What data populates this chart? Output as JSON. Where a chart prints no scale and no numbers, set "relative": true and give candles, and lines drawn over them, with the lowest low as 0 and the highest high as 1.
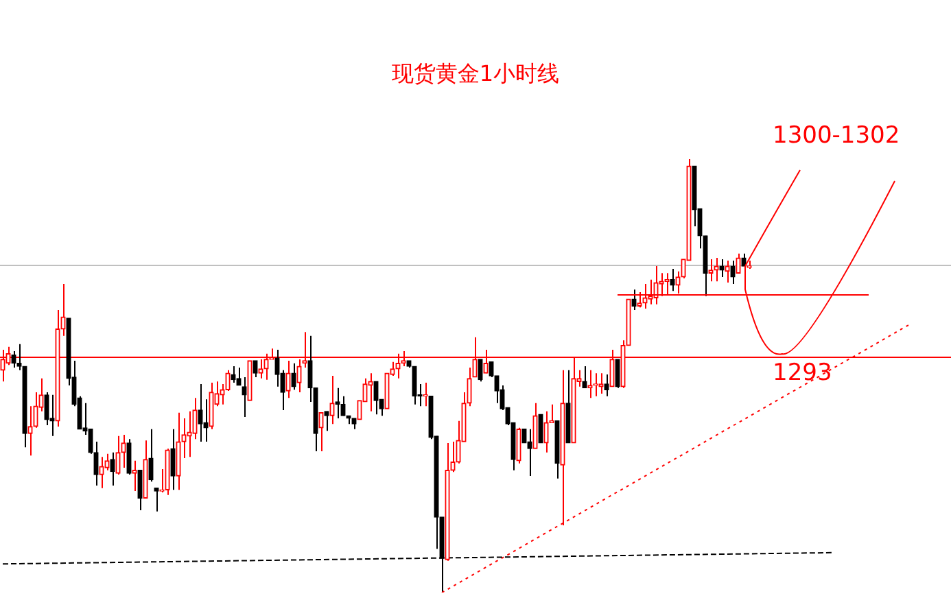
{
  "chart_data": {
    "type": "candlestick",
    "title": "现货黄金1小时线",
    "relative": true,
    "categories": [
      null,
      null,
      null,
      null,
      null,
      null,
      null,
      null,
      null,
      null,
      null,
      null,
      null,
      null,
      null,
      null,
      null,
      null,
      null,
      null,
      null,
      null,
      null,
      null,
      null,
      null,
      null,
      null,
      null,
      null,
      null,
      null,
      null,
      null,
      null,
      null,
      null,
      null,
      null,
      null,
      null,
      null,
      null,
      null,
      null,
      null,
      null,
      null,
      null,
      null,
      null,
      null,
      null,
      null,
      null,
      null,
      null,
      null,
      null,
      null,
      null,
      null,
      null,
      null,
      null,
      null,
      null,
      null,
      null,
      null,
      null,
      null,
      null,
      null,
      null,
      null,
      null,
      null,
      null,
      null,
      null,
      null,
      null,
      null,
      null,
      null,
      null,
      null,
      null,
      null,
      null,
      null,
      null,
      null,
      null,
      null,
      null,
      null,
      null,
      null,
      null,
      null,
      null,
      null,
      null,
      null,
      null,
      null,
      null,
      null,
      null,
      null,
      null,
      null,
      null,
      null,
      null,
      null,
      null,
      null,
      null,
      null,
      null,
      null,
      null,
      null,
      null,
      null,
      null,
      null,
      null,
      null,
      null,
      null,
      null,
      null,
      null,
      null,
      null,
      null,
      null,
      null,
      null,
      null,
      null,
      null,
      null,
      null,
      null,
      null,
      null,
      null,
      null,
      null,
      null,
      null,
      null,
      null,
      null,
      null,
      null,
      null,
      null,
      null,
      null,
      null
    ],
    "series": [
      {
        "type": "line",
        "color": "#000000",
        "line_style": "dashed",
        "values": [
          0.066,
          null,
          null,
          null,
          null,
          null,
          null,
          null,
          null,
          null,
          null,
          null,
          null,
          null,
          null,
          null,
          null,
          null,
          null,
          null,
          null,
          null,
          null,
          null,
          null,
          null,
          null,
          null,
          null,
          null,
          null,
          null,
          null,
          null,
          null,
          null,
          null,
          null,
          null,
          null,
          null,
          null,
          null,
          null,
          null,
          null,
          null,
          null,
          null,
          null,
          null,
          null,
          null,
          null,
          null,
          null,
          null,
          null,
          null,
          null,
          null,
          null,
          null,
          null,
          null,
          null,
          null,
          null,
          null,
          null,
          null,
          null,
          null,
          null,
          null,
          null,
          null,
          null,
          null,
          null,
          null,
          null,
          null,
          null,
          null,
          null,
          null,
          null,
          null,
          null,
          null,
          null,
          null,
          null,
          null,
          null,
          null,
          null,
          null,
          null,
          null,
          null,
          null,
          null,
          null,
          null,
          null,
          null,
          null,
          null,
          null,
          null,
          null,
          null,
          null,
          null,
          null,
          null,
          null,
          null,
          null,
          null,
          null,
          null,
          null,
          null,
          null,
          null,
          null,
          null,
          null,
          null,
          null,
          null,
          null,
          null,
          null,
          null,
          null,
          null,
          null,
          null,
          null,
          null,
          null,
          null,
          null,
          null,
          null,
          null,
          null,
          0.092,
          null,
          null,
          null,
          null,
          null,
          null,
          null,
          null,
          null,
          null,
          null,
          null,
          null,
          null
        ]
      },
      {
        "type": "line",
        "color": "#ff0000",
        "line_style": "dotted",
        "values": [
          null,
          null,
          null,
          null,
          null,
          null,
          null,
          null,
          null,
          null,
          null,
          null,
          null,
          null,
          null,
          null,
          null,
          null,
          null,
          null,
          null,
          null,
          null,
          null,
          null,
          null,
          null,
          null,
          null,
          null,
          null,
          null,
          null,
          null,
          null,
          null,
          null,
          null,
          null,
          null,
          null,
          null,
          null,
          null,
          null,
          null,
          null,
          null,
          null,
          null,
          null,
          null,
          null,
          null,
          null,
          null,
          null,
          null,
          null,
          null,
          null,
          null,
          null,
          null,
          null,
          null,
          null,
          null,
          null,
          null,
          null,
          null,
          null,
          null,
          null,
          null,
          null,
          null,
          null,
          null,
          0,
          null,
          null,
          null,
          null,
          null,
          null,
          null,
          null,
          null,
          null,
          null,
          null,
          null,
          null,
          null,
          null,
          null,
          null,
          null,
          null,
          null,
          null,
          null,
          null,
          null,
          null,
          null,
          null,
          null,
          null,
          null,
          null,
          null,
          null,
          null,
          null,
          null,
          null,
          null,
          null,
          null,
          null,
          null,
          null,
          null,
          null,
          null,
          null,
          null,
          null,
          null,
          null,
          null,
          null,
          null,
          null,
          null,
          null,
          null,
          null,
          null,
          null,
          null,
          null,
          null,
          null,
          null,
          null,
          null,
          null,
          null,
          null,
          null,
          null,
          null,
          null,
          null,
          null,
          null,
          null,
          null,
          null,
          null,
          null,
          0.617
        ]
      }
    ],
    "ohlc": [
      [
        0.513,
        0.56,
        0.487,
        0.538
      ],
      [
        0.529,
        0.567,
        0.525,
        0.551
      ],
      [
        0.548,
        0.557,
        0.519,
        0.529
      ],
      [
        0.529,
        0.573,
        0.513,
        0.522
      ],
      [
        0.522,
        0.522,
        0.335,
        0.367
      ],
      [
        0.367,
        0.43,
        0.316,
        0.383
      ],
      [
        0.383,
        0.462,
        0.38,
        0.43
      ],
      [
        0.427,
        0.494,
        0.418,
        0.456
      ],
      [
        0.456,
        0.462,
        0.386,
        0.399
      ],
      [
        0.402,
        0.456,
        0.361,
        0.396
      ],
      [
        0.396,
        0.652,
        0.383,
        0.608
      ],
      [
        0.608,
        0.712,
        0.592,
        0.636
      ],
      [
        0.633,
        0.633,
        0.478,
        0.494
      ],
      [
        0.497,
        0.535,
        0.43,
        0.434
      ],
      [
        0.449,
        0.453,
        0.377,
        0.377
      ],
      [
        0.38,
        0.437,
        0.364,
        0.373
      ],
      [
        0.377,
        0.377,
        0.32,
        0.323
      ],
      [
        0.323,
        0.348,
        0.247,
        0.272
      ],
      [
        0.272,
        0.313,
        0.241,
        0.291
      ],
      [
        0.288,
        0.32,
        0.282,
        0.304
      ],
      [
        0.307,
        0.323,
        0.247,
        0.279
      ],
      [
        0.275,
        0.361,
        0.272,
        0.323
      ],
      [
        0.323,
        0.364,
        0.288,
        0.345
      ],
      [
        0.345,
        0.354,
        0.272,
        0.275
      ],
      [
        0.275,
        0.304,
        0.234,
        0.282
      ],
      [
        0.282,
        0.282,
        0.19,
        0.218
      ],
      [
        0.218,
        0.351,
        0.218,
        0.307
      ],
      [
        0.31,
        0.377,
        0.256,
        0.26
      ],
      [
        0.241,
        0.241,
        0.187,
        0.234
      ],
      [
        0.234,
        0.285,
        0.231,
        0.237
      ],
      [
        0.237,
        0.332,
        0.225,
        0.329
      ],
      [
        0.332,
        0.377,
        0.237,
        0.269
      ],
      [
        0.269,
        0.415,
        0.237,
        0.348
      ],
      [
        0.348,
        0.402,
        0.31,
        0.364
      ],
      [
        0.361,
        0.418,
        0.313,
        0.37
      ],
      [
        0.367,
        0.449,
        0.354,
        0.421
      ],
      [
        0.421,
        0.481,
        0.348,
        0.389
      ],
      [
        0.392,
        0.446,
        0.348,
        0.38
      ],
      [
        0.383,
        0.484,
        0.377,
        0.462
      ],
      [
        0.434,
        0.487,
        0.43,
        0.459
      ],
      [
        0.456,
        0.481,
        0.434,
        0.468
      ],
      [
        0.468,
        0.513,
        0.465,
        0.506
      ],
      [
        0.503,
        0.522,
        0.484,
        0.491
      ],
      [
        0.494,
        0.519,
        0.478,
        0.478
      ],
      [
        0.475,
        0.497,
        0.405,
        0.456
      ],
      [
        0.443,
        0.535,
        0.443,
        0.535
      ],
      [
        0.535,
        0.535,
        0.497,
        0.506
      ],
      [
        0.506,
        0.538,
        0.494,
        0.516
      ],
      [
        0.516,
        0.551,
        0.491,
        0.538
      ],
      [
        0.538,
        0.563,
        0.538,
        0.541
      ],
      [
        0.541,
        0.56,
        0.475,
        0.503
      ],
      [
        0.506,
        0.513,
        0.421,
        0.462
      ],
      [
        0.465,
        0.535,
        0.449,
        0.506
      ],
      [
        0.506,
        0.529,
        0.468,
        0.475
      ],
      [
        0.484,
        0.538,
        0.462,
        0.522
      ],
      [
        0.529,
        0.601,
        0.519,
        0.535
      ],
      [
        0.535,
        0.592,
        0.44,
        0.472
      ],
      [
        0.472,
        0.472,
        0.326,
        0.367
      ],
      [
        0.38,
        0.415,
        0.326,
        0.415
      ],
      [
        0.418,
        0.418,
        0.373,
        0.408
      ],
      [
        0.408,
        0.5,
        0.389,
        0.437
      ],
      [
        0.44,
        0.472,
        0.402,
        0.434
      ],
      [
        0.434,
        0.453,
        0.408,
        0.408
      ],
      [
        0.408,
        0.408,
        0.389,
        0.402
      ],
      [
        0.402,
        0.402,
        0.377,
        0.389
      ],
      [
        0.399,
        0.443,
        0.399,
        0.443
      ],
      [
        0.44,
        0.494,
        0.44,
        0.481
      ],
      [
        0.478,
        0.506,
        0.418,
        0.487
      ],
      [
        0.487,
        0.487,
        0.411,
        0.443
      ],
      [
        0.446,
        0.446,
        0.408,
        0.424
      ],
      [
        0.424,
        0.506,
        0.424,
        0.506
      ],
      [
        0.503,
        0.532,
        0.5,
        0.516
      ],
      [
        0.516,
        0.551,
        0.494,
        0.529
      ],
      [
        0.529,
        0.557,
        0.522,
        0.535
      ],
      [
        0.535,
        0.535,
        0.519,
        0.522
      ],
      [
        0.522,
        0.522,
        0.434,
        0.453
      ],
      [
        0.456,
        0.481,
        0.43,
        0.453
      ],
      [
        0.453,
        0.484,
        0.43,
        0.456
      ],
      [
        0.453,
        0.453,
        0.354,
        0.358
      ],
      [
        0.361,
        0.361,
        0.101,
        0.174
      ],
      [
        0.174,
        0.174,
        0,
        0.079
      ],
      [
        0.076,
        0.345,
        0.073,
        0.282
      ],
      [
        0.282,
        0.348,
        0.278,
        0.301
      ],
      [
        0.301,
        0.396,
        0.298,
        0.351
      ],
      [
        0.348,
        0.462,
        0.348,
        0.437
      ],
      [
        0.437,
        0.519,
        0.43,
        0.494
      ],
      [
        0.497,
        0.589,
        0.497,
        0.538
      ],
      [
        0.538,
        0.538,
        0.487,
        0.491
      ],
      [
        0.506,
        0.56,
        0.506,
        0.529
      ],
      [
        0.532,
        0.532,
        0.497,
        0.5
      ],
      [
        0.5,
        0.5,
        0.437,
        0.465
      ],
      [
        0.468,
        0.478,
        0.421,
        0.424
      ],
      [
        0.427,
        0.427,
        0.386,
        0.389
      ],
      [
        0.392,
        0.392,
        0.282,
        0.307
      ],
      [
        0.304,
        0.38,
        0.298,
        0.377
      ],
      [
        0.377,
        0.377,
        0.345,
        0.345
      ],
      [
        0.348,
        0.377,
        0.269,
        0.332
      ],
      [
        0.332,
        0.437,
        0.332,
        0.408
      ],
      [
        0.411,
        0.411,
        0.345,
        0.345
      ],
      [
        0.345,
        0.418,
        0.323,
        0.392
      ],
      [
        0.392,
        0.434,
        0.392,
        0.396
      ],
      [
        0.396,
        0.396,
        0.263,
        0.298
      ],
      [
        0.294,
        0.513,
        0.155,
        0.437
      ],
      [
        0.437,
        0.513,
        0.345,
        0.345
      ],
      [
        0.345,
        0.544,
        0.345,
        0.494
      ],
      [
        0.487,
        0.513,
        0.475,
        0.494
      ],
      [
        0.487,
        0.522,
        0.472,
        0.472
      ],
      [
        0.472,
        0.513,
        0.449,
        0.478
      ],
      [
        0.478,
        0.506,
        0.453,
        0.481
      ],
      [
        0.475,
        0.506,
        0.459,
        0.481
      ],
      [
        0.481,
        0.503,
        0.453,
        0.468
      ],
      [
        0.475,
        0.56,
        0.475,
        0.538
      ],
      [
        0.538,
        0.538,
        0.472,
        0.475
      ],
      [
        0.475,
        0.582,
        0.472,
        0.57
      ],
      [
        0.57,
        0.677,
        0.57,
        0.677
      ],
      [
        0.677,
        0.699,
        0.652,
        0.661
      ],
      [
        0.661,
        0.693,
        0.658,
        0.668
      ],
      [
        0.668,
        0.712,
        0.655,
        0.68
      ],
      [
        0.677,
        0.722,
        0.665,
        0.684
      ],
      [
        0.68,
        0.753,
        0.665,
        0.715
      ],
      [
        0.712,
        0.737,
        0.684,
        0.718
      ],
      [
        0.718,
        0.737,
        0.687,
        0.722
      ],
      [
        0.722,
        0.747,
        0.696,
        0.709
      ],
      [
        0.709,
        0.741,
        0.69,
        0.728
      ],
      [
        0.728,
        0.769,
        0.725,
        0.769
      ],
      [
        0.766,
        1,
        0.766,
        0.984
      ],
      [
        0.984,
        0.984,
        0.845,
        0.883
      ],
      [
        0.886,
        0.886,
        0.794,
        0.823
      ],
      [
        0.823,
        0.823,
        0.684,
        0.737
      ],
      [
        0.737,
        0.769,
        0.718,
        0.744
      ],
      [
        0.744,
        0.772,
        0.718,
        0.753
      ],
      [
        0.753,
        0.769,
        0.728,
        0.744
      ],
      [
        0.741,
        0.766,
        0.715,
        0.753
      ],
      [
        0.753,
        0.766,
        0.712,
        0.728
      ],
      [
        0.737,
        0.782,
        0.737,
        0.772
      ],
      [
        0.772,
        0.782,
        0.753,
        0.753
      ],
      [
        0.75,
        0.766,
        0.747,
        0.753
      ],
      null,
      null,
      null,
      null,
      null,
      null,
      null,
      null,
      null,
      null,
      null,
      null,
      null,
      null,
      null,
      null,
      null,
      null,
      null,
      null,
      null,
      null,
      null,
      null,
      null,
      null,
      null,
      null,
      null
    ],
    "ref_lines": [
      {
        "axis": "y",
        "value": 0.756,
        "color": "#c0c0c0"
      },
      {
        "axis": "y",
        "value": 0.544,
        "color": "#ff0000"
      }
    ],
    "annotations": [
      "1300-1302",
      "1293"
    ]
  }
}
